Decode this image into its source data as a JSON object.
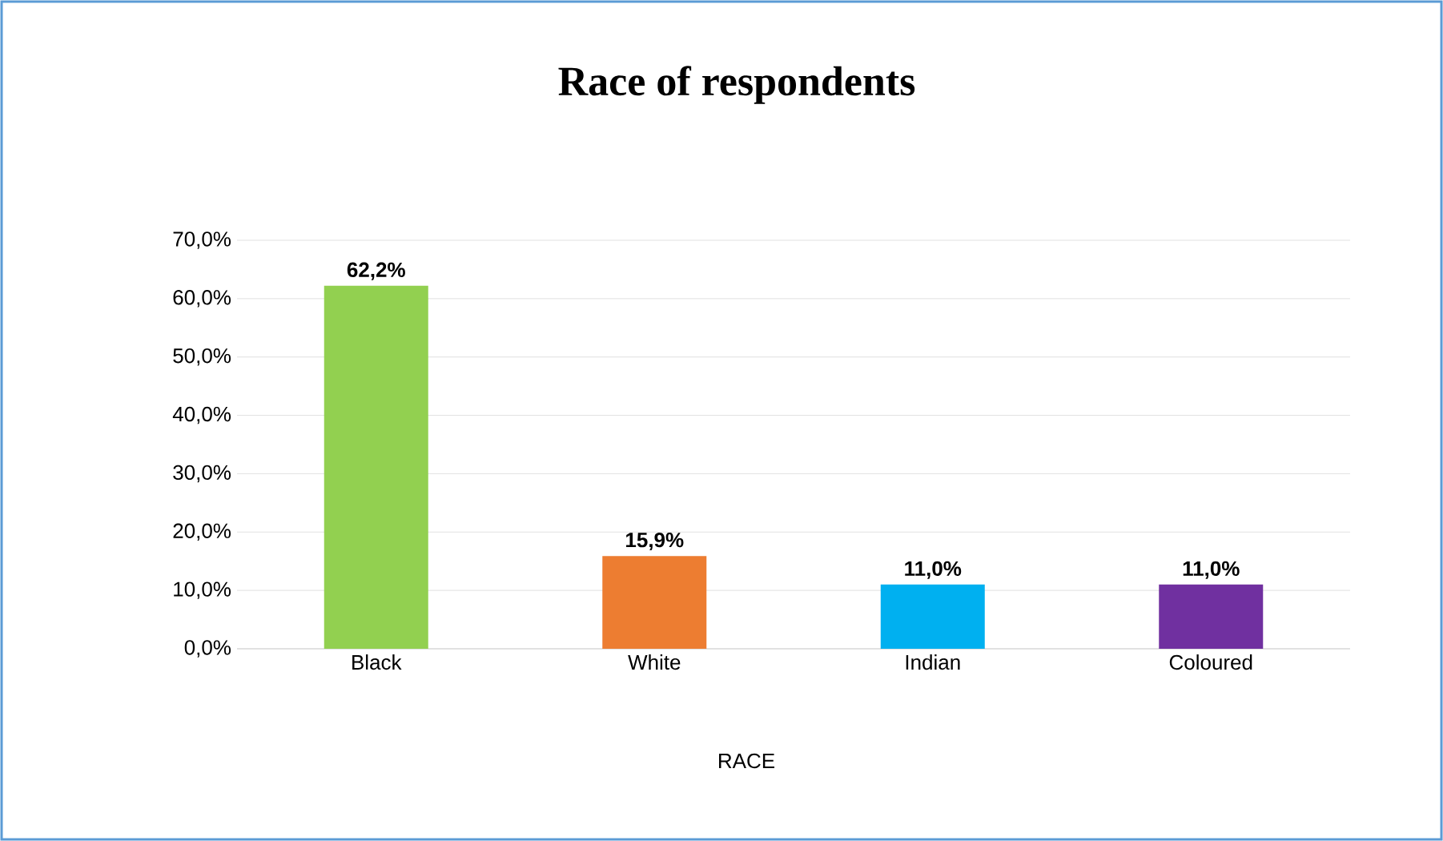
{
  "chart_data": {
    "type": "bar",
    "title": "Race of respondents",
    "xlabel": "RACE",
    "categories": [
      "Black",
      "White",
      "Indian",
      "Coloured"
    ],
    "values": [
      62.2,
      15.9,
      11.0,
      11.0
    ],
    "colors": [
      "#92d050",
      "#ed7d31",
      "#00b0f0",
      "#7030a0"
    ],
    "value_labels": [
      "62,2%",
      "15,9%",
      "11,0%",
      "11,0%"
    ],
    "ylim": [
      0,
      70
    ],
    "yticks": [
      {
        "value": 0,
        "label": "0,0%"
      },
      {
        "value": 10,
        "label": "10,0%"
      },
      {
        "value": 20,
        "label": "20,0%"
      },
      {
        "value": 30,
        "label": "30,0%"
      },
      {
        "value": 40,
        "label": "40,0%"
      },
      {
        "value": 50,
        "label": "50,0%"
      },
      {
        "value": 60,
        "label": "60,0%"
      },
      {
        "value": 70,
        "label": "70,0%"
      }
    ],
    "grid": "y"
  }
}
